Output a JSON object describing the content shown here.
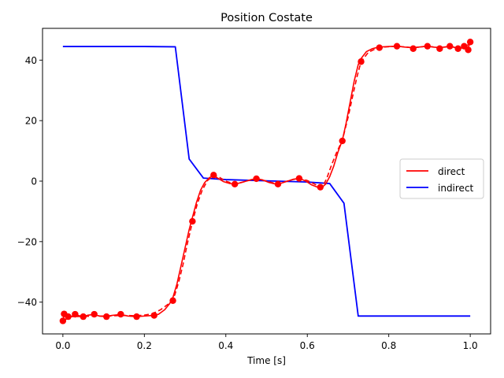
{
  "chart_data": {
    "type": "line",
    "title": "Position Costate",
    "xlabel": "Time [s]",
    "ylabel": "",
    "xlim": [
      -0.05,
      1.05
    ],
    "ylim": [
      -50.5,
      50.5
    ],
    "xticks": [
      0.0,
      0.2,
      0.4,
      0.6,
      0.8,
      1.0
    ],
    "xtick_labels": [
      "0.0",
      "0.2",
      "0.4",
      "0.6",
      "0.8",
      "1.0"
    ],
    "yticks": [
      -40,
      -20,
      0,
      20,
      40
    ],
    "ytick_labels": [
      "−40",
      "−20",
      "0",
      "20",
      "40"
    ],
    "grid": false,
    "legend_position": "center-right",
    "series": [
      {
        "name": "direct",
        "color": "#ff0000",
        "smooth_curve": [
          [
            0.0,
            -46.2
          ],
          [
            0.003,
            -44.2
          ],
          [
            0.006,
            -43.9
          ],
          [
            0.012,
            -44.6
          ],
          [
            0.02,
            -44.8
          ],
          [
            0.03,
            -44.1
          ],
          [
            0.04,
            -44.5
          ],
          [
            0.05,
            -44.8
          ],
          [
            0.062,
            -44.3
          ],
          [
            0.075,
            -44.1
          ],
          [
            0.09,
            -44.6
          ],
          [
            0.105,
            -44.8
          ],
          [
            0.12,
            -44.4
          ],
          [
            0.14,
            -44.1
          ],
          [
            0.16,
            -44.6
          ],
          [
            0.18,
            -44.8
          ],
          [
            0.2,
            -44.6
          ],
          [
            0.22,
            -44.4
          ],
          [
            0.235,
            -44.0
          ],
          [
            0.25,
            -42.5
          ],
          [
            0.262,
            -40.5
          ],
          [
            0.27,
            -38.5
          ],
          [
            0.28,
            -34.0
          ],
          [
            0.29,
            -28.0
          ],
          [
            0.3,
            -22.0
          ],
          [
            0.31,
            -16.0
          ],
          [
            0.318,
            -12.0
          ],
          [
            0.328,
            -7.0
          ],
          [
            0.338,
            -3.0
          ],
          [
            0.348,
            -0.5
          ],
          [
            0.36,
            1.2
          ],
          [
            0.37,
            1.6
          ],
          [
            0.38,
            1.0
          ],
          [
            0.395,
            -0.2
          ],
          [
            0.41,
            -0.8
          ],
          [
            0.422,
            -1.0
          ],
          [
            0.44,
            -0.4
          ],
          [
            0.46,
            0.4
          ],
          [
            0.475,
            0.8
          ],
          [
            0.49,
            0.4
          ],
          [
            0.505,
            -0.4
          ],
          [
            0.52,
            -0.9
          ],
          [
            0.528,
            -1.0
          ],
          [
            0.545,
            -0.3
          ],
          [
            0.565,
            0.6
          ],
          [
            0.58,
            0.9
          ],
          [
            0.595,
            0.1
          ],
          [
            0.61,
            -1.2
          ],
          [
            0.625,
            -2.0
          ],
          [
            0.635,
            -2.2
          ],
          [
            0.645,
            -1.0
          ],
          [
            0.655,
            1.5
          ],
          [
            0.665,
            5.0
          ],
          [
            0.675,
            9.5
          ],
          [
            0.686,
            13.5
          ],
          [
            0.695,
            19.0
          ],
          [
            0.705,
            26.0
          ],
          [
            0.715,
            33.0
          ],
          [
            0.725,
            38.5
          ],
          [
            0.732,
            40.5
          ],
          [
            0.745,
            42.8
          ],
          [
            0.76,
            43.8
          ],
          [
            0.775,
            44.3
          ],
          [
            0.8,
            44.5
          ],
          [
            0.82,
            44.6
          ],
          [
            0.84,
            44.3
          ],
          [
            0.86,
            44.1
          ],
          [
            0.88,
            44.4
          ],
          [
            0.895,
            44.6
          ],
          [
            0.91,
            44.3
          ],
          [
            0.925,
            44.1
          ],
          [
            0.94,
            44.4
          ],
          [
            0.952,
            44.6
          ],
          [
            0.965,
            44.1
          ],
          [
            0.973,
            43.8
          ],
          [
            0.982,
            44.2
          ],
          [
            0.99,
            44.5
          ],
          [
            0.995,
            44.2
          ],
          [
            1.0,
            45.8
          ]
        ],
        "dashed_curve": [
          [
            0.0,
            -46.2
          ],
          [
            0.02,
            -44.8
          ],
          [
            0.05,
            -44.7
          ],
          [
            0.1,
            -44.6
          ],
          [
            0.15,
            -44.4
          ],
          [
            0.18,
            -44.5
          ],
          [
            0.2,
            -44.3
          ],
          [
            0.22,
            -43.8
          ],
          [
            0.24,
            -42.5
          ],
          [
            0.255,
            -41.0
          ],
          [
            0.265,
            -40.0
          ],
          [
            0.275,
            -37.5
          ],
          [
            0.285,
            -33.0
          ],
          [
            0.295,
            -27.5
          ],
          [
            0.305,
            -21.0
          ],
          [
            0.318,
            -13.5
          ],
          [
            0.33,
            -7.5
          ],
          [
            0.342,
            -3.0
          ],
          [
            0.355,
            0.2
          ],
          [
            0.37,
            1.9
          ],
          [
            0.385,
            1.2
          ],
          [
            0.4,
            0.0
          ],
          [
            0.422,
            -1.0
          ],
          [
            0.45,
            0.0
          ],
          [
            0.475,
            0.9
          ],
          [
            0.5,
            0.0
          ],
          [
            0.528,
            -1.0
          ],
          [
            0.555,
            0.2
          ],
          [
            0.58,
            1.0
          ],
          [
            0.6,
            0.2
          ],
          [
            0.615,
            -0.8
          ],
          [
            0.627,
            -1.6
          ],
          [
            0.637,
            -2.0
          ],
          [
            0.648,
            1.0
          ],
          [
            0.66,
            5.5
          ],
          [
            0.672,
            9.5
          ],
          [
            0.686,
            13.5
          ],
          [
            0.7,
            21.0
          ],
          [
            0.712,
            28.5
          ],
          [
            0.722,
            34.5
          ],
          [
            0.732,
            39.5
          ],
          [
            0.75,
            42.6
          ],
          [
            0.775,
            44.2
          ],
          [
            0.82,
            44.6
          ],
          [
            0.86,
            44.1
          ],
          [
            0.895,
            44.6
          ],
          [
            0.925,
            44.1
          ],
          [
            0.952,
            44.5
          ],
          [
            0.973,
            43.8
          ],
          [
            0.99,
            44.5
          ],
          [
            1.0,
            45.8
          ]
        ],
        "markers": [
          [
            0.0,
            -46.2
          ],
          [
            0.003,
            -43.9
          ],
          [
            0.013,
            -44.8
          ],
          [
            0.03,
            -44.0
          ],
          [
            0.05,
            -44.8
          ],
          [
            0.077,
            -44.0
          ],
          [
            0.107,
            -44.8
          ],
          [
            0.142,
            -44.0
          ],
          [
            0.181,
            -44.8
          ],
          [
            0.224,
            -44.4
          ],
          [
            0.27,
            -39.5
          ],
          [
            0.318,
            -13.3
          ],
          [
            0.37,
            2.0
          ],
          [
            0.422,
            -1.0
          ],
          [
            0.475,
            0.8
          ],
          [
            0.528,
            -1.0
          ],
          [
            0.58,
            0.9
          ],
          [
            0.632,
            -2.0
          ],
          [
            0.686,
            13.3
          ],
          [
            0.732,
            39.5
          ],
          [
            0.777,
            44.1
          ],
          [
            0.82,
            44.6
          ],
          [
            0.86,
            43.8
          ],
          [
            0.895,
            44.6
          ],
          [
            0.925,
            43.8
          ],
          [
            0.95,
            44.6
          ],
          [
            0.97,
            43.8
          ],
          [
            0.985,
            44.6
          ],
          [
            0.995,
            43.4
          ],
          [
            1.0,
            46.0
          ]
        ]
      },
      {
        "name": "indirect",
        "color": "#0000ff",
        "points": [
          [
            0.0,
            44.5
          ],
          [
            0.1,
            44.5
          ],
          [
            0.2,
            44.5
          ],
          [
            0.276,
            44.4
          ],
          [
            0.31,
            7.3
          ],
          [
            0.345,
            1.0
          ],
          [
            0.4,
            0.5
          ],
          [
            0.5,
            0.1
          ],
          [
            0.6,
            -0.3
          ],
          [
            0.655,
            -0.8
          ],
          [
            0.69,
            -7.3
          ],
          [
            0.725,
            -44.6
          ],
          [
            0.8,
            -44.6
          ],
          [
            0.9,
            -44.6
          ],
          [
            1.0,
            -44.6
          ]
        ]
      }
    ]
  }
}
